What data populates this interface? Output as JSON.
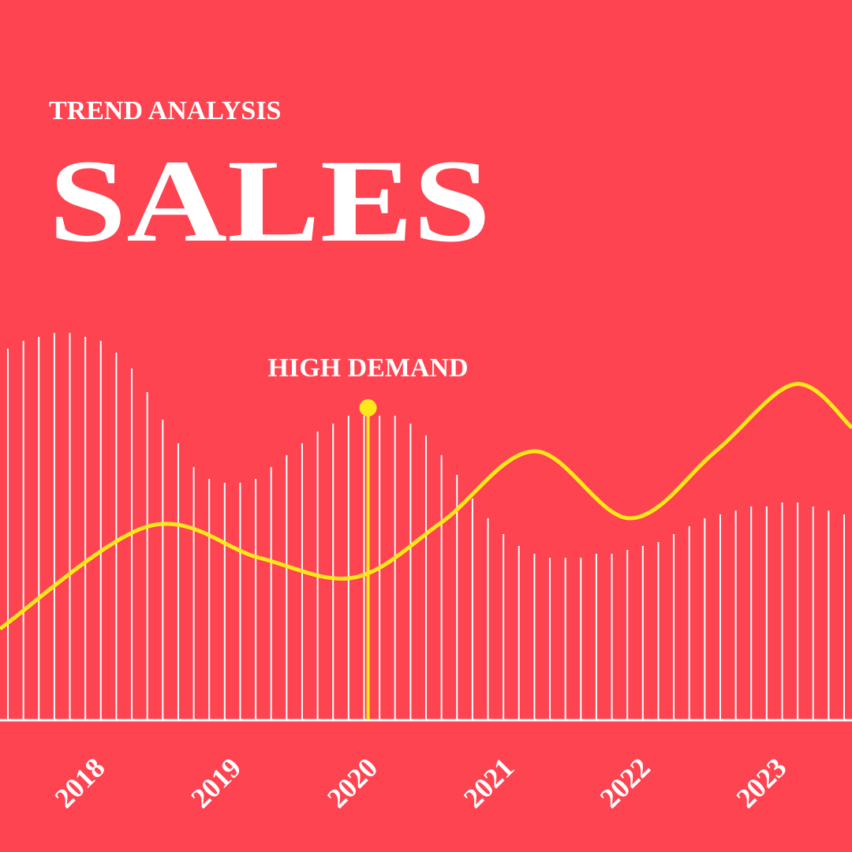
{
  "chart_data": {
    "type": "line",
    "title": "TREND ANALYSIS",
    "subtitle": "SALES",
    "background": "#fd4450",
    "xlim": [
      2017.4,
      2023.65
    ],
    "xticks": [
      2018,
      2019,
      2020,
      2021,
      2022,
      2023
    ],
    "ylim": [
      0,
      100
    ],
    "line": {
      "color": "#ffe81a",
      "x": [
        2017.4,
        2018.49,
        2019.3,
        2020.0,
        2020.64,
        2021.32,
        2022.02,
        2022.65,
        2023.23,
        2023.65
      ],
      "values": [
        23,
        49,
        41,
        36,
        50,
        68,
        51,
        68,
        85,
        74
      ]
    },
    "bars": {
      "color": "#ffffff",
      "values": [
        94,
        96,
        97,
        98,
        98,
        97,
        96,
        93,
        89,
        83,
        76,
        70,
        64,
        61,
        60,
        60,
        61,
        64,
        67,
        70,
        73,
        75,
        77,
        77,
        77,
        77,
        75,
        72,
        67,
        62,
        56,
        51,
        47,
        44,
        42,
        41,
        41,
        41,
        42,
        42,
        43,
        44,
        45,
        47,
        49,
        51,
        52,
        53,
        54,
        54,
        55,
        55,
        54,
        53,
        52
      ]
    },
    "annotation": {
      "text": "HIGH DEMAND",
      "x": 2020.1,
      "y": 79,
      "color": "#ffe81a"
    }
  }
}
